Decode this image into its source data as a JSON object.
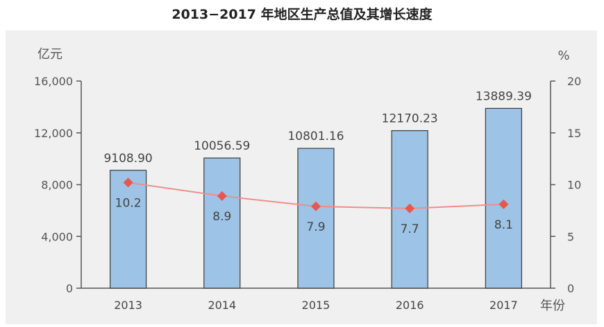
{
  "title": "2013−2017 年地区生产总值及其增长速度",
  "chart_data": {
    "type": "bar",
    "categories": [
      "2013",
      "2014",
      "2015",
      "2016",
      "2017"
    ],
    "series": [
      {
        "values": [
          9108.9,
          10056.59,
          10801.16,
          12170.23,
          13889.39
        ],
        "labels": [
          "9108.90",
          "10056.59",
          "10801.16",
          "12170.23",
          "13889.39"
        ],
        "axis": "left",
        "type": "bar",
        "color": "#9dc3e6"
      },
      {
        "values": [
          10.2,
          8.9,
          7.9,
          7.7,
          8.1
        ],
        "labels": [
          "10.2",
          "8.9",
          "7.9",
          "7.7",
          "8.1"
        ],
        "axis": "right",
        "type": "line",
        "color": "#f08c8c"
      }
    ],
    "y_left": {
      "label": "亿元",
      "ylim": [
        0,
        16000
      ],
      "ticks": [
        0,
        4000,
        8000,
        12000,
        16000
      ],
      "tick_labels": [
        "0",
        "4,000",
        "8,000",
        "12,000",
        "16,000"
      ]
    },
    "y_right": {
      "label": "%",
      "ylim": [
        0,
        20
      ],
      "ticks": [
        0,
        5,
        10,
        15,
        20
      ],
      "tick_labels": [
        "0",
        "5",
        "10",
        "15",
        "20"
      ]
    },
    "xlabel": "年份",
    "grid": false
  }
}
